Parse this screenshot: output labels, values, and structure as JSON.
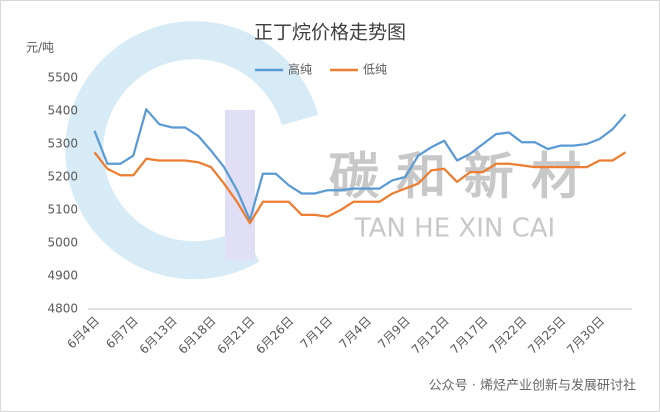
{
  "chart_data": {
    "type": "line",
    "title": "正丁烷价格走势图",
    "y_label": "元/吨",
    "categories": [
      "6月4日",
      null,
      null,
      "6月7日",
      null,
      null,
      "6月13日",
      null,
      null,
      "6月18日",
      null,
      null,
      "6月21日",
      null,
      null,
      "6月26日",
      null,
      null,
      "7月1日",
      null,
      null,
      "7月4日",
      null,
      null,
      "7月9日",
      null,
      null,
      "7月12日",
      null,
      null,
      "7月17日",
      null,
      null,
      "7月22日",
      null,
      null,
      "7月25日",
      null,
      null,
      "7月30日",
      null,
      null
    ],
    "series": [
      {
        "name": "高纯",
        "color": "#5b9bd5",
        "values": [
          5340,
          5240,
          5240,
          5265,
          5405,
          5360,
          5350,
          5350,
          5325,
          5280,
          5230,
          5160,
          5070,
          5210,
          5210,
          5175,
          5150,
          5150,
          5160,
          5160,
          5165,
          5165,
          5165,
          5190,
          5200,
          5265,
          5290,
          5310,
          5250,
          5270,
          5300,
          5330,
          5335,
          5305,
          5305,
          5285,
          5295,
          5295,
          5300,
          5315,
          5345,
          5390
        ]
      },
      {
        "name": "低纯",
        "color": "#ed7d31",
        "values": [
          5275,
          5225,
          5205,
          5205,
          5255,
          5250,
          5250,
          5250,
          5245,
          5230,
          5180,
          5125,
          5060,
          5125,
          5125,
          5125,
          5085,
          5085,
          5080,
          5100,
          5125,
          5125,
          5125,
          5150,
          5165,
          5180,
          5220,
          5225,
          5185,
          5215,
          5215,
          5240,
          5240,
          5235,
          5230,
          5230,
          5230,
          5230,
          5230,
          5250,
          5250,
          5275
        ]
      }
    ],
    "ylim": [
      4800,
      5500
    ],
    "yticks": [
      4800,
      4900,
      5000,
      5100,
      5200,
      5300,
      5400,
      5500
    ],
    "grid": false,
    "legend": "top"
  },
  "watermark": {
    "cn": "碳 和 新 材",
    "en": "TAN  HE  XIN  CAI"
  },
  "footer": "公众号 · 烯烃产业创新与发展研讨社"
}
